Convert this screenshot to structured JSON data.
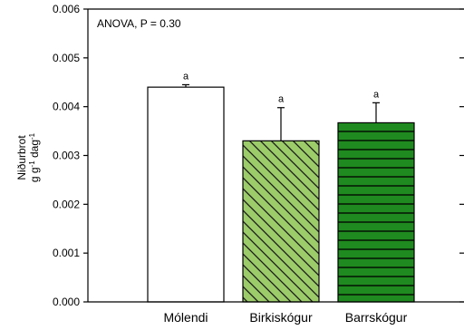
{
  "chart_data": {
    "type": "bar",
    "categories": [
      "Mólendi",
      "Birkiskógur",
      "Barrskógur"
    ],
    "values": [
      0.0044,
      0.0033,
      0.00367
    ],
    "error_bars": [
      5e-05,
      0.00068,
      0.00041
    ],
    "significance_letters": [
      "a",
      "a",
      "a"
    ],
    "annotation": "ANOVA, P = 0.30",
    "ylabel_line1": "Niðurbrot",
    "ylabel_line2_base": "g g",
    "ylabel_line2_sup1": "-1",
    "ylabel_line2_mid": " dag",
    "ylabel_line2_sup2": "-1",
    "ylim": [
      0,
      0.006
    ],
    "yticks": [
      "0.000",
      "0.001",
      "0.002",
      "0.003",
      "0.004",
      "0.005",
      "0.006"
    ],
    "bar_fills": [
      "#ffffff",
      "#9ccc6a",
      "#1f8a1f"
    ],
    "bar_patterns": [
      "none",
      "diagonal",
      "horizontal"
    ],
    "grid": false
  }
}
